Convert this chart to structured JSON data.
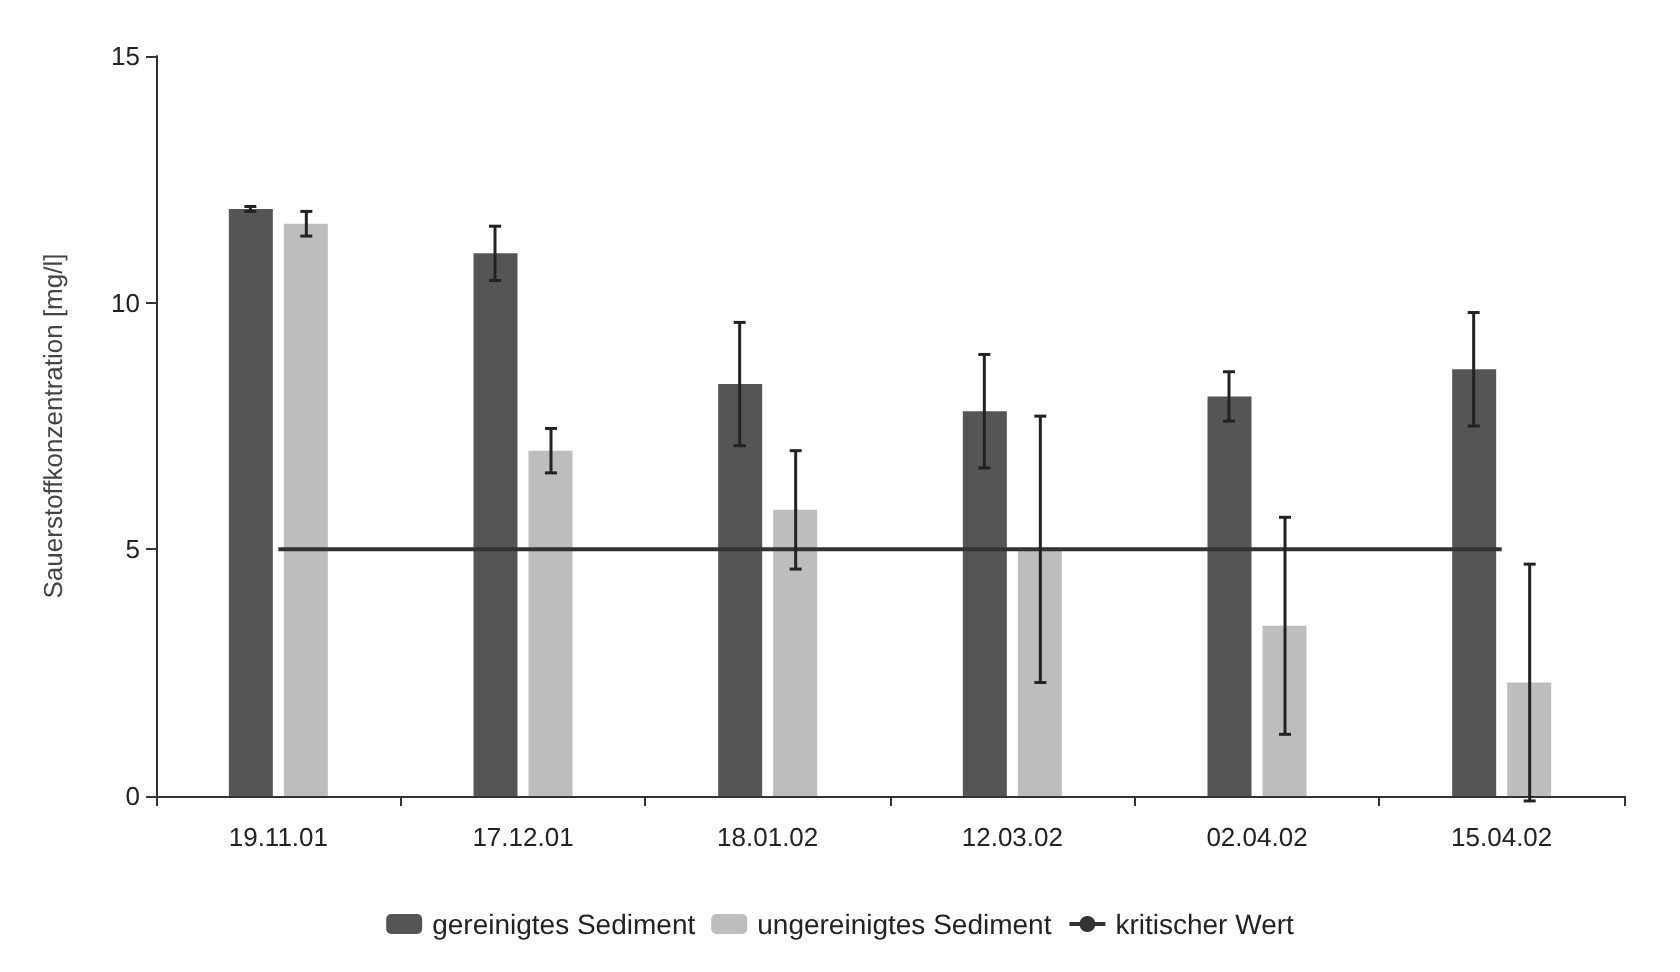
{
  "chart_data": {
    "type": "bar",
    "ylabel": "Sauerstoffkonzentration [mg/l]",
    "categories": [
      "19.11.01",
      "17.12.01",
      "18.01.02",
      "12.03.02",
      "02.04.02",
      "15.04.02"
    ],
    "series": [
      {
        "name": "gereinigtes Sediment",
        "color": "#555555",
        "values": [
          11.9,
          11.0,
          8.35,
          7.8,
          8.1,
          8.65
        ],
        "errors": [
          0.05,
          0.55,
          1.25,
          1.15,
          0.5,
          1.15
        ]
      },
      {
        "name": "ungereinigtes Sediment",
        "color": "#bdbdbd",
        "values": [
          11.6,
          7.0,
          5.8,
          5.0,
          3.45,
          2.3
        ],
        "errors": [
          0.25,
          0.45,
          1.2,
          2.7,
          2.2,
          2.4
        ]
      }
    ],
    "ref_lines": [
      {
        "axis": "y",
        "value": 5,
        "label": "kritischer Wert",
        "color": "#333333"
      }
    ],
    "ylim": [
      0,
      15
    ],
    "yticks": [
      0,
      5,
      10,
      15
    ],
    "grid": false,
    "legend": "bottom"
  }
}
